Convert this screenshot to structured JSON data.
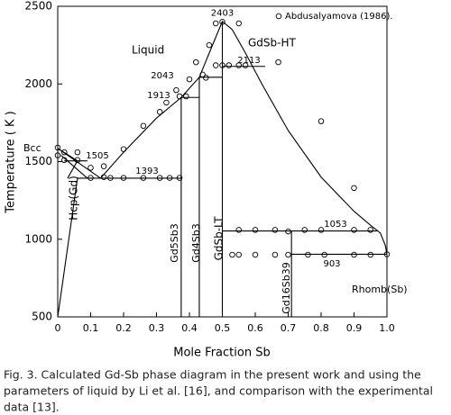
{
  "chart_data": {
    "type": "phase",
    "xlabel": "Mole Fraction Sb",
    "ylabel": "Temperature ( K )",
    "xlim": [
      0,
      1
    ],
    "ylim": [
      500,
      2500
    ],
    "xticks": [
      0,
      0.1,
      0.2,
      0.3,
      0.4,
      0.5,
      0.6,
      0.7,
      0.8,
      0.9,
      {
        "value": 1,
        "label": "1.0"
      }
    ],
    "yticks": [
      500,
      1000,
      1500,
      2000,
      2500
    ],
    "line_color": "#000000",
    "curves": [
      {
        "x": [
          0.13,
          0.2,
          0.3,
          0.375,
          0.43,
          0.47,
          0.5,
          0.53,
          0.57,
          0.62,
          0.7,
          0.8,
          0.9,
          0.95,
          0.98,
          0.995,
          1.0
        ],
        "y": [
          1393,
          1560,
          1780,
          1913,
          2043,
          2250,
          2403,
          2350,
          2200,
          2000,
          1700,
          1400,
          1180,
          1090,
          1040,
          960,
          903
        ]
      },
      {
        "x": [
          0,
          0.13
        ],
        "y": [
          1585,
          1393
        ]
      },
      {
        "x": [
          0,
          0.06,
          0.03
        ],
        "y": [
          1585,
          1505,
          1393
        ]
      },
      {
        "x": [
          0,
          0.06
        ],
        "y": [
          500,
          1393
        ]
      },
      {
        "x": [
          0.01,
          0.09
        ],
        "y": [
          1540,
          1393
        ]
      }
    ],
    "isotherms": [
      {
        "temperature": 1393,
        "x": [
          0.06,
          0.375
        ]
      },
      {
        "temperature": 1505,
        "x": [
          0.02,
          0.09
        ]
      },
      {
        "temperature": 1913,
        "x": [
          0.375,
          0.43
        ]
      },
      {
        "temperature": 2043,
        "x": [
          0.43,
          0.5
        ]
      },
      {
        "temperature": 2113,
        "x": [
          0.5,
          0.63
        ]
      },
      {
        "temperature": 1053,
        "x": [
          0.5,
          0.97
        ]
      },
      {
        "temperature": 903,
        "x": [
          0.71,
          1.0
        ]
      }
    ],
    "maximum": {
      "x": 0.5,
      "temperature": 2403
    },
    "compounds": [
      {
        "x": 0.375,
        "y": [
          500,
          1913
        ]
      },
      {
        "x": 0.43,
        "y": [
          500,
          2043
        ]
      },
      {
        "x": 0.5,
        "y": [
          500,
          2403
        ]
      },
      {
        "x": 0.71,
        "y": [
          500,
          1053
        ]
      }
    ],
    "phase_labels": [
      "Liquid",
      "GdSb-HT",
      "Bcc",
      "Hcp(Gd)",
      "Gd5Sb3",
      "Gd4Sb3",
      "GdSb-LT",
      "Gd16Sb39",
      "Rhomb(Sb)"
    ],
    "series": [
      {
        "name": "Abdusalyamova (1986).",
        "x": [
          0,
          0,
          0.02,
          0.02,
          0.06,
          0.06,
          0.1,
          0.14,
          0.14,
          0.2,
          0.26,
          0.31,
          0.33,
          0.36,
          0.37,
          0.39,
          0.4,
          0.44,
          0.42,
          0.46,
          0.48,
          0.5,
          0.55,
          0.48,
          0.5,
          0.52,
          0.55,
          0.57,
          0.67,
          0.8,
          0.9,
          0.1,
          0.16,
          0.2,
          0.26,
          0.31,
          0.34,
          0.37,
          0.45,
          0.55,
          0.6,
          0.66,
          0.7,
          0.75,
          0.8,
          0.9,
          0.95,
          0.53,
          0.55,
          0.6,
          0.66,
          0.7,
          0.76,
          0.81,
          0.9,
          0.95,
          1.0
        ],
        "y": [
          1590,
          1540,
          1560,
          1510,
          1560,
          1510,
          1460,
          1470,
          1400,
          1580,
          1730,
          1820,
          1880,
          1960,
          1920,
          1920,
          2030,
          2060,
          2140,
          2250,
          2390,
          2400,
          2390,
          2120,
          2120,
          2120,
          2120,
          2120,
          2140,
          1760,
          1330,
          1395,
          1395,
          1395,
          1395,
          1395,
          1395,
          1395,
          2040,
          1060,
          1060,
          1060,
          1050,
          1060,
          1060,
          1060,
          1060,
          900,
          900,
          900,
          900,
          900,
          900,
          900,
          900,
          900,
          903
        ]
      }
    ],
    "caption": [
      "Fig. 3. Calculated Gd-Sb phase diagram in the present work and using the",
      "parameters of liquid by Li et al. [16], and comparison with the experimental",
      "data [13]."
    ]
  }
}
